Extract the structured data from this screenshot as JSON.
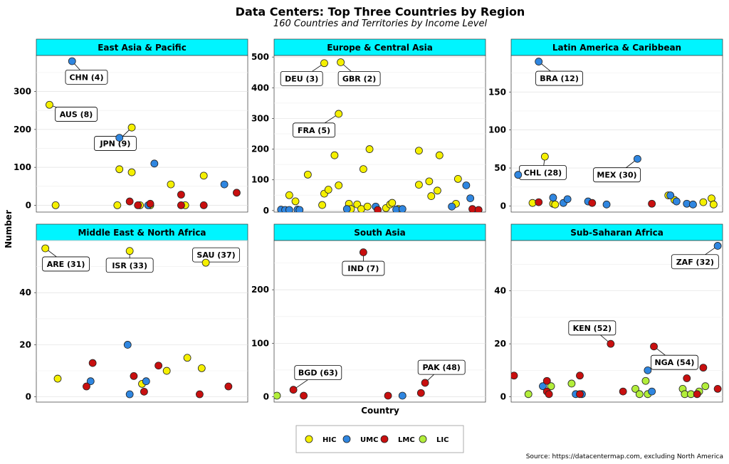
{
  "title": "Data Centers: Top Three Countries by Region",
  "subtitle": "160 Countries and Territories by Income Level",
  "source": "Source: https://datacentermap.com, excluding North America",
  "colors": {
    "strip_bg": "#00f5ff",
    "HIC": "#f5f000",
    "UMC": "#2f86e0",
    "LMC": "#c80f0f",
    "LIC": "#b2ee3a"
  },
  "chart_data": {
    "type": "scatter",
    "xlabel": "Country",
    "ylabel": "Number",
    "grid": true,
    "legend_position": "bottom",
    "legend": [
      {
        "key": "HIC",
        "label": "HIC"
      },
      {
        "key": "UMC",
        "label": "UMC"
      },
      {
        "key": "LMC",
        "label": "LMC"
      },
      {
        "key": "LIC",
        "label": "LIC"
      }
    ],
    "panels": [
      {
        "name": "East Asia & Pacific",
        "ylim": [
          -18,
          395
        ],
        "yticks": [
          0,
          100,
          200,
          300
        ],
        "points": [
          {
            "x": 0.08,
            "y": 0,
            "g": "HIC"
          },
          {
            "x": 0.38,
            "y": 0,
            "g": "HIC"
          },
          {
            "x": 0.39,
            "y": 95,
            "g": "HIC"
          },
          {
            "x": 0.45,
            "y": 87,
            "g": "HIC"
          },
          {
            "x": 0.49,
            "y": 0,
            "g": "HIC"
          },
          {
            "x": 0.54,
            "y": 0,
            "g": "HIC"
          },
          {
            "x": 0.64,
            "y": 55,
            "g": "HIC"
          },
          {
            "x": 0.71,
            "y": 0,
            "g": "HIC"
          },
          {
            "x": 0.8,
            "y": 78,
            "g": "HIC"
          },
          {
            "x": 0.56,
            "y": 110,
            "g": "UMC"
          },
          {
            "x": 0.53,
            "y": 0,
            "g": "UMC"
          },
          {
            "x": 0.9,
            "y": 55,
            "g": "UMC"
          },
          {
            "x": 0.44,
            "y": 10,
            "g": "LMC"
          },
          {
            "x": 0.48,
            "y": 0,
            "g": "LMC"
          },
          {
            "x": 0.54,
            "y": 4,
            "g": "LMC"
          },
          {
            "x": 0.69,
            "y": 28,
            "g": "LMC"
          },
          {
            "x": 0.69,
            "y": 0,
            "g": "LMC"
          },
          {
            "x": 0.8,
            "y": 0,
            "g": "LMC"
          },
          {
            "x": 0.96,
            "y": 33,
            "g": "LMC"
          }
        ],
        "labeled": [
          {
            "x": 0.16,
            "y": 380,
            "g": "UMC",
            "label": "CHN (4)",
            "lx": 0.23,
            "ly": 338
          },
          {
            "x": 0.05,
            "y": 265,
            "g": "HIC",
            "label": "AUS (8)",
            "lx": 0.18,
            "ly": 240
          },
          {
            "x": 0.45,
            "y": 205,
            "g": "HIC",
            "label": "JPN (9)",
            "lx": 0.37,
            "ly": 163
          },
          {
            "x": 0.39,
            "y": 178,
            "g": "UMC",
            "label": "",
            "lx": null,
            "ly": null
          }
        ]
      },
      {
        "name": "Europe & Central Asia",
        "ylim": [
          -5,
          505
        ],
        "yticks": [
          0,
          100,
          200,
          300,
          400,
          500
        ],
        "points": [
          {
            "x": 0.06,
            "y": 50,
            "g": "HIC"
          },
          {
            "x": 0.09,
            "y": 30,
            "g": "HIC"
          },
          {
            "x": 0.15,
            "y": 117,
            "g": "HIC"
          },
          {
            "x": 0.22,
            "y": 18,
            "g": "HIC"
          },
          {
            "x": 0.23,
            "y": 55,
            "g": "HIC"
          },
          {
            "x": 0.25,
            "y": 68,
            "g": "HIC"
          },
          {
            "x": 0.28,
            "y": 180,
            "g": "HIC"
          },
          {
            "x": 0.3,
            "y": 82,
            "g": "HIC"
          },
          {
            "x": 0.35,
            "y": 22,
            "g": "HIC"
          },
          {
            "x": 0.36,
            "y": 5,
            "g": "HIC"
          },
          {
            "x": 0.39,
            "y": 20,
            "g": "HIC"
          },
          {
            "x": 0.41,
            "y": 5,
            "g": "HIC"
          },
          {
            "x": 0.42,
            "y": 135,
            "g": "HIC"
          },
          {
            "x": 0.44,
            "y": 13,
            "g": "HIC"
          },
          {
            "x": 0.45,
            "y": 200,
            "g": "HIC"
          },
          {
            "x": 0.53,
            "y": 8,
            "g": "HIC"
          },
          {
            "x": 0.55,
            "y": 20,
            "g": "HIC"
          },
          {
            "x": 0.56,
            "y": 25,
            "g": "HIC"
          },
          {
            "x": 0.59,
            "y": 5,
            "g": "HIC"
          },
          {
            "x": 0.69,
            "y": 195,
            "g": "HIC"
          },
          {
            "x": 0.69,
            "y": 84,
            "g": "HIC"
          },
          {
            "x": 0.74,
            "y": 95,
            "g": "HIC"
          },
          {
            "x": 0.75,
            "y": 47,
            "g": "HIC"
          },
          {
            "x": 0.78,
            "y": 65,
            "g": "HIC"
          },
          {
            "x": 0.79,
            "y": 180,
            "g": "HIC"
          },
          {
            "x": 0.87,
            "y": 22,
            "g": "HIC"
          },
          {
            "x": 0.88,
            "y": 103,
            "g": "HIC"
          },
          {
            "x": 0.02,
            "y": 3,
            "g": "UMC"
          },
          {
            "x": 0.04,
            "y": 2,
            "g": "UMC"
          },
          {
            "x": 0.06,
            "y": 2,
            "g": "UMC"
          },
          {
            "x": 0.1,
            "y": 3,
            "g": "UMC"
          },
          {
            "x": 0.11,
            "y": 2,
            "g": "UMC"
          },
          {
            "x": 0.34,
            "y": 5,
            "g": "UMC"
          },
          {
            "x": 0.48,
            "y": 13,
            "g": "UMC"
          },
          {
            "x": 0.58,
            "y": 3,
            "g": "UMC"
          },
          {
            "x": 0.61,
            "y": 5,
            "g": "UMC"
          },
          {
            "x": 0.85,
            "y": 13,
            "g": "UMC"
          },
          {
            "x": 0.92,
            "y": 82,
            "g": "UMC"
          },
          {
            "x": 0.94,
            "y": 40,
            "g": "UMC"
          },
          {
            "x": 0.49,
            "y": 2,
            "g": "LMC"
          },
          {
            "x": 0.95,
            "y": 5,
            "g": "LMC"
          },
          {
            "x": 0.98,
            "y": 2,
            "g": "LMC"
          }
        ],
        "labeled": [
          {
            "x": 0.23,
            "y": 480,
            "g": "HIC",
            "label": "DEU (3)",
            "lx": 0.12,
            "ly": 430
          },
          {
            "x": 0.31,
            "y": 483,
            "g": "HIC",
            "label": "GBR (2)",
            "lx": 0.4,
            "ly": 430
          },
          {
            "x": 0.3,
            "y": 315,
            "g": "HIC",
            "label": "FRA (5)",
            "lx": 0.18,
            "ly": 262
          }
        ]
      },
      {
        "name": "Latin America & Caribbean",
        "ylim": [
          -8,
          198
        ],
        "yticks": [
          0,
          50,
          100,
          150
        ],
        "points": [
          {
            "x": 0.09,
            "y": 4,
            "g": "HIC"
          },
          {
            "x": 0.19,
            "y": 3,
            "g": "HIC"
          },
          {
            "x": 0.2,
            "y": 2,
            "g": "HIC"
          },
          {
            "x": 0.75,
            "y": 14,
            "g": "HIC"
          },
          {
            "x": 0.78,
            "y": 8,
            "g": "HIC"
          },
          {
            "x": 0.92,
            "y": 5,
            "g": "HIC"
          },
          {
            "x": 0.96,
            "y": 10,
            "g": "HIC"
          },
          {
            "x": 0.97,
            "y": 2,
            "g": "HIC"
          },
          {
            "x": 0.19,
            "y": 11,
            "g": "UMC"
          },
          {
            "x": 0.24,
            "y": 4,
            "g": "UMC"
          },
          {
            "x": 0.26,
            "y": 9,
            "g": "UMC"
          },
          {
            "x": 0.36,
            "y": 6,
            "g": "UMC"
          },
          {
            "x": 0.45,
            "y": 2,
            "g": "UMC"
          },
          {
            "x": 0.76,
            "y": 14,
            "g": "UMC"
          },
          {
            "x": 0.79,
            "y": 6,
            "g": "UMC"
          },
          {
            "x": 0.84,
            "y": 3,
            "g": "UMC"
          },
          {
            "x": 0.87,
            "y": 2,
            "g": "UMC"
          },
          {
            "x": 0.12,
            "y": 5,
            "g": "LMC"
          },
          {
            "x": 0.38,
            "y": 4,
            "g": "LMC"
          },
          {
            "x": 0.67,
            "y": 3,
            "g": "LMC"
          }
        ],
        "labeled": [
          {
            "x": 0.12,
            "y": 190,
            "g": "UMC",
            "label": "BRA (12)",
            "lx": 0.22,
            "ly": 168
          },
          {
            "x": 0.15,
            "y": 65,
            "g": "HIC",
            "label": "CHL (28)",
            "lx": 0.14,
            "ly": 44
          },
          {
            "x": 0.02,
            "y": 41,
            "g": "UMC",
            "label": "",
            "lx": null,
            "ly": null
          },
          {
            "x": 0.6,
            "y": 62,
            "g": "UMC",
            "label": "MEX (30)",
            "lx": 0.5,
            "ly": 41
          }
        ]
      },
      {
        "name": "Middle East & North Africa",
        "ylim": [
          -2,
          60
        ],
        "yticks": [
          0,
          20,
          40
        ],
        "points": [
          {
            "x": 0.09,
            "y": 7,
            "g": "HIC"
          },
          {
            "x": 0.5,
            "y": 5,
            "g": "HIC"
          },
          {
            "x": 0.62,
            "y": 10,
            "g": "HIC"
          },
          {
            "x": 0.72,
            "y": 15,
            "g": "HIC"
          },
          {
            "x": 0.79,
            "y": 11,
            "g": "HIC"
          },
          {
            "x": 0.25,
            "y": 6,
            "g": "UMC"
          },
          {
            "x": 0.43,
            "y": 20,
            "g": "UMC"
          },
          {
            "x": 0.44,
            "y": 1,
            "g": "UMC"
          },
          {
            "x": 0.52,
            "y": 6,
            "g": "UMC"
          },
          {
            "x": 0.23,
            "y": 4,
            "g": "LMC"
          },
          {
            "x": 0.26,
            "y": 13,
            "g": "LMC"
          },
          {
            "x": 0.46,
            "y": 8,
            "g": "LMC"
          },
          {
            "x": 0.51,
            "y": 2,
            "g": "LMC"
          },
          {
            "x": 0.58,
            "y": 12,
            "g": "LMC"
          },
          {
            "x": 0.78,
            "y": 1,
            "g": "LMC"
          },
          {
            "x": 0.92,
            "y": 4,
            "g": "LMC"
          }
        ],
        "labeled": [
          {
            "x": 0.03,
            "y": 57,
            "g": "HIC",
            "label": "ARE (31)",
            "lx": 0.13,
            "ly": 51
          },
          {
            "x": 0.44,
            "y": 56,
            "g": "HIC",
            "label": "ISR (33)",
            "lx": 0.44,
            "ly": 50.5
          },
          {
            "x": 0.81,
            "y": 51.5,
            "g": "HIC",
            "label": "SAU (37)",
            "lx": 0.86,
            "ly": 54.5
          }
        ]
      },
      {
        "name": "South Asia",
        "ylim": [
          -10,
          292
        ],
        "yticks": [
          0,
          100,
          200
        ],
        "points": [
          {
            "x": 0.0,
            "y": 2,
            "g": "LIC"
          },
          {
            "x": 0.13,
            "y": 2,
            "g": "LMC"
          },
          {
            "x": 0.54,
            "y": 2,
            "g": "LMC"
          },
          {
            "x": 0.61,
            "y": 2,
            "g": "UMC"
          },
          {
            "x": 0.7,
            "y": 7,
            "g": "LMC"
          }
        ],
        "labeled": [
          {
            "x": 0.42,
            "y": 270,
            "g": "LMC",
            "label": "IND (7)",
            "lx": 0.42,
            "ly": 240
          },
          {
            "x": 0.08,
            "y": 13,
            "g": "LMC",
            "label": "BGD (63)",
            "lx": 0.2,
            "ly": 45
          },
          {
            "x": 0.72,
            "y": 26,
            "g": "LMC",
            "label": "PAK (48)",
            "lx": 0.8,
            "ly": 55
          }
        ]
      },
      {
        "name": "Sub-Saharan Africa",
        "ylim": [
          -2,
          59
        ],
        "yticks": [
          0,
          20,
          40
        ],
        "points": [
          {
            "x": 0.07,
            "y": 1,
            "g": "LIC"
          },
          {
            "x": 0.18,
            "y": 4,
            "g": "LIC"
          },
          {
            "x": 0.28,
            "y": 5,
            "g": "LIC"
          },
          {
            "x": 0.59,
            "y": 3,
            "g": "LIC"
          },
          {
            "x": 0.61,
            "y": 1,
            "g": "LIC"
          },
          {
            "x": 0.64,
            "y": 6,
            "g": "LIC"
          },
          {
            "x": 0.65,
            "y": 1,
            "g": "LIC"
          },
          {
            "x": 0.82,
            "y": 3,
            "g": "LIC"
          },
          {
            "x": 0.83,
            "y": 1,
            "g": "LIC"
          },
          {
            "x": 0.86,
            "y": 1,
            "g": "LIC"
          },
          {
            "x": 0.9,
            "y": 2,
            "g": "LIC"
          },
          {
            "x": 0.93,
            "y": 4,
            "g": "LIC"
          },
          {
            "x": 0.14,
            "y": 4,
            "g": "UMC"
          },
          {
            "x": 0.3,
            "y": 1,
            "g": "UMC"
          },
          {
            "x": 0.33,
            "y": 1,
            "g": "UMC"
          },
          {
            "x": 0.65,
            "y": 10,
            "g": "UMC"
          },
          {
            "x": 0.67,
            "y": 2,
            "g": "UMC"
          },
          {
            "x": 0.0,
            "y": 8,
            "g": "LMC"
          },
          {
            "x": 0.16,
            "y": 6,
            "g": "LMC"
          },
          {
            "x": 0.16,
            "y": 2,
            "g": "LMC"
          },
          {
            "x": 0.17,
            "y": 1,
            "g": "LMC"
          },
          {
            "x": 0.32,
            "y": 8,
            "g": "LMC"
          },
          {
            "x": 0.32,
            "y": 1,
            "g": "LMC"
          },
          {
            "x": 0.53,
            "y": 2,
            "g": "LMC"
          },
          {
            "x": 0.84,
            "y": 7,
            "g": "LMC"
          },
          {
            "x": 0.89,
            "y": 1,
            "g": "LMC"
          },
          {
            "x": 0.92,
            "y": 11,
            "g": "LMC"
          },
          {
            "x": 0.99,
            "y": 3,
            "g": "LMC"
          }
        ],
        "labeled": [
          {
            "x": 0.47,
            "y": 20,
            "g": "LMC",
            "label": "KEN (52)",
            "lx": 0.38,
            "ly": 26
          },
          {
            "x": 0.68,
            "y": 19,
            "g": "LMC",
            "label": "NGA (54)",
            "lx": 0.78,
            "ly": 13
          },
          {
            "x": 0.99,
            "y": 57,
            "g": "UMC",
            "label": "ZAF (32)",
            "lx": 0.88,
            "ly": 51
          }
        ]
      }
    ]
  }
}
